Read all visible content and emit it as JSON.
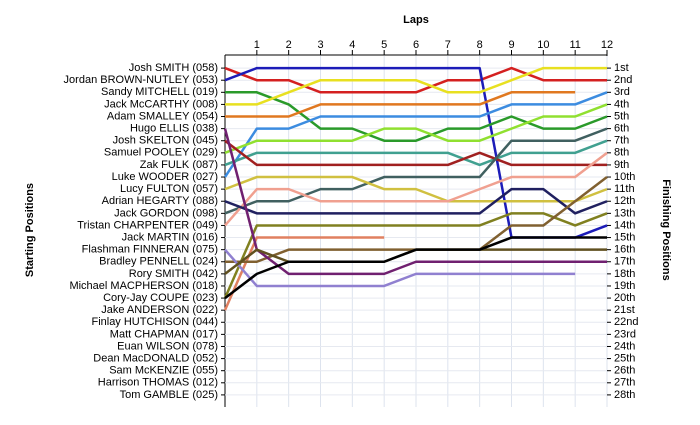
{
  "chart_data": {
    "type": "line",
    "x_label": "Laps",
    "y_label": "Starting Positions",
    "y2_label": "Finishing Positions",
    "x": [
      0,
      1,
      2,
      3,
      4,
      5,
      6,
      7,
      8,
      9,
      10,
      11,
      12
    ],
    "xlim": [
      0,
      12
    ],
    "xticks": [
      1,
      2,
      3,
      4,
      5,
      6,
      7,
      8,
      9,
      10,
      11,
      12
    ],
    "ylim": [
      0,
      29
    ],
    "inverted": true,
    "grid": true,
    "categories": [
      "Josh SMITH (058)",
      "Jordan BROWN-NUTLEY (053)",
      "Sandy MITCHELL (019)",
      "Jack McCARTHY (008)",
      "Adam SMALLEY (054)",
      "Hugo ELLIS (038)",
      "Josh SKELTON (045)",
      "Samuel POOLEY (029)",
      "Zak FULK (087)",
      "Luke WOODER (027)",
      "Lucy FULTON (057)",
      "Adrian HEGARTY (088)",
      "Jack GORDON (098)",
      "Tristan CHARPENTER (049)",
      "Jack MARTIN (016)",
      "Flashman FINNERAN (075)",
      "Bradley PENNELL (024)",
      "Rory SMITH (042)",
      "Michael MACPHERSON (018)",
      "Cory-Jay COUPE (023)",
      "Jake ANDERSON (022)",
      "Finlay HUTCHISON (044)",
      "Matt CHAPMAN (017)",
      "Euan WILSON (078)",
      "Dean MacDONALD (052)",
      "Sam McKENZIE (055)",
      "Harrison THOMAS (012)",
      "Tom GAMBLE (025)"
    ],
    "finishing": [
      "1st",
      "2nd",
      "3rd",
      "4th",
      "5th",
      "6th",
      "7th",
      "8th",
      "9th",
      "10th",
      "11th",
      "12th",
      "13th",
      "14th",
      "15th",
      "16th",
      "17th",
      "18th",
      "19th",
      "20th",
      "21st",
      "22nd",
      "23rd",
      "24th",
      "25th",
      "26th",
      "27th",
      "28th"
    ],
    "series": [
      {
        "color": "#d42020",
        "values": [
          1,
          2,
          2,
          3,
          3,
          3,
          3,
          2,
          2,
          1,
          2,
          2,
          2
        ]
      },
      {
        "color": "#1c1cb8",
        "values": [
          2,
          1,
          1,
          1,
          1,
          1,
          1,
          1,
          1,
          15,
          15,
          15,
          14
        ]
      },
      {
        "color": "#2a9a2a",
        "values": [
          3,
          3,
          4,
          6,
          6,
          7,
          7,
          6,
          6,
          5,
          6,
          6,
          5
        ]
      },
      {
        "color": "#e8e020",
        "values": [
          4,
          4,
          3,
          2,
          2,
          2,
          2,
          3,
          3,
          2,
          1,
          1,
          1
        ]
      },
      {
        "color": "#e07820",
        "values": [
          5,
          5,
          5,
          4,
          4,
          4,
          4,
          4,
          4,
          3,
          3,
          3,
          null
        ]
      },
      {
        "color": "#3c8ce0",
        "values": [
          10,
          6,
          6,
          5,
          5,
          5,
          5,
          5,
          5,
          4,
          4,
          4,
          3
        ]
      },
      {
        "color": "#90e030",
        "values": [
          8,
          7,
          7,
          7,
          7,
          6,
          6,
          7,
          7,
          6,
          5,
          5,
          4
        ]
      },
      {
        "color": "#40a090",
        "values": [
          9,
          8,
          8,
          8,
          8,
          8,
          8,
          8,
          9,
          8,
          8,
          8,
          7
        ]
      },
      {
        "color": "#a02020",
        "values": [
          7,
          9,
          9,
          9,
          9,
          9,
          9,
          9,
          8,
          9,
          9,
          9,
          9
        ]
      },
      {
        "color": "#406060",
        "values": [
          13,
          12,
          12,
          11,
          11,
          10,
          10,
          10,
          10,
          7,
          7,
          7,
          6
        ]
      },
      {
        "color": "#d0c040",
        "values": [
          11,
          10,
          10,
          10,
          10,
          11,
          11,
          12,
          12,
          12,
          12,
          12,
          11
        ]
      },
      {
        "color": "#f0a090",
        "values": [
          14,
          11,
          11,
          12,
          12,
          12,
          12,
          12,
          11,
          10,
          10,
          10,
          8
        ]
      },
      {
        "color": "#202060",
        "values": [
          12,
          13,
          13,
          13,
          13,
          13,
          13,
          13,
          13,
          11,
          11,
          13,
          12
        ]
      },
      {
        "color": "#808020",
        "values": [
          20,
          14,
          14,
          14,
          14,
          14,
          14,
          14,
          14,
          13,
          13,
          14,
          13
        ]
      },
      {
        "color": "#e08060",
        "values": [
          21,
          15,
          15,
          15,
          15,
          15,
          null,
          null,
          null,
          null,
          null,
          null,
          null
        ]
      },
      {
        "color": "#806030",
        "values": [
          17,
          17,
          16,
          16,
          16,
          16,
          16,
          16,
          16,
          14,
          14,
          12,
          10
        ]
      },
      {
        "color": "#702070",
        "values": [
          6,
          16,
          18,
          18,
          18,
          18,
          17,
          17,
          17,
          17,
          17,
          17,
          17
        ]
      },
      {
        "color": "#9080d0",
        "values": [
          16,
          19,
          19,
          19,
          19,
          19,
          18,
          18,
          18,
          18,
          18,
          18,
          null
        ]
      },
      {
        "color": "#605020",
        "values": [
          18,
          16,
          17,
          17,
          17,
          17,
          16,
          16,
          16,
          16,
          16,
          16,
          16
        ]
      },
      {
        "color": "#000000",
        "values": [
          20,
          18,
          17,
          17,
          17,
          17,
          16,
          16,
          16,
          15,
          15,
          15,
          15
        ]
      }
    ]
  }
}
